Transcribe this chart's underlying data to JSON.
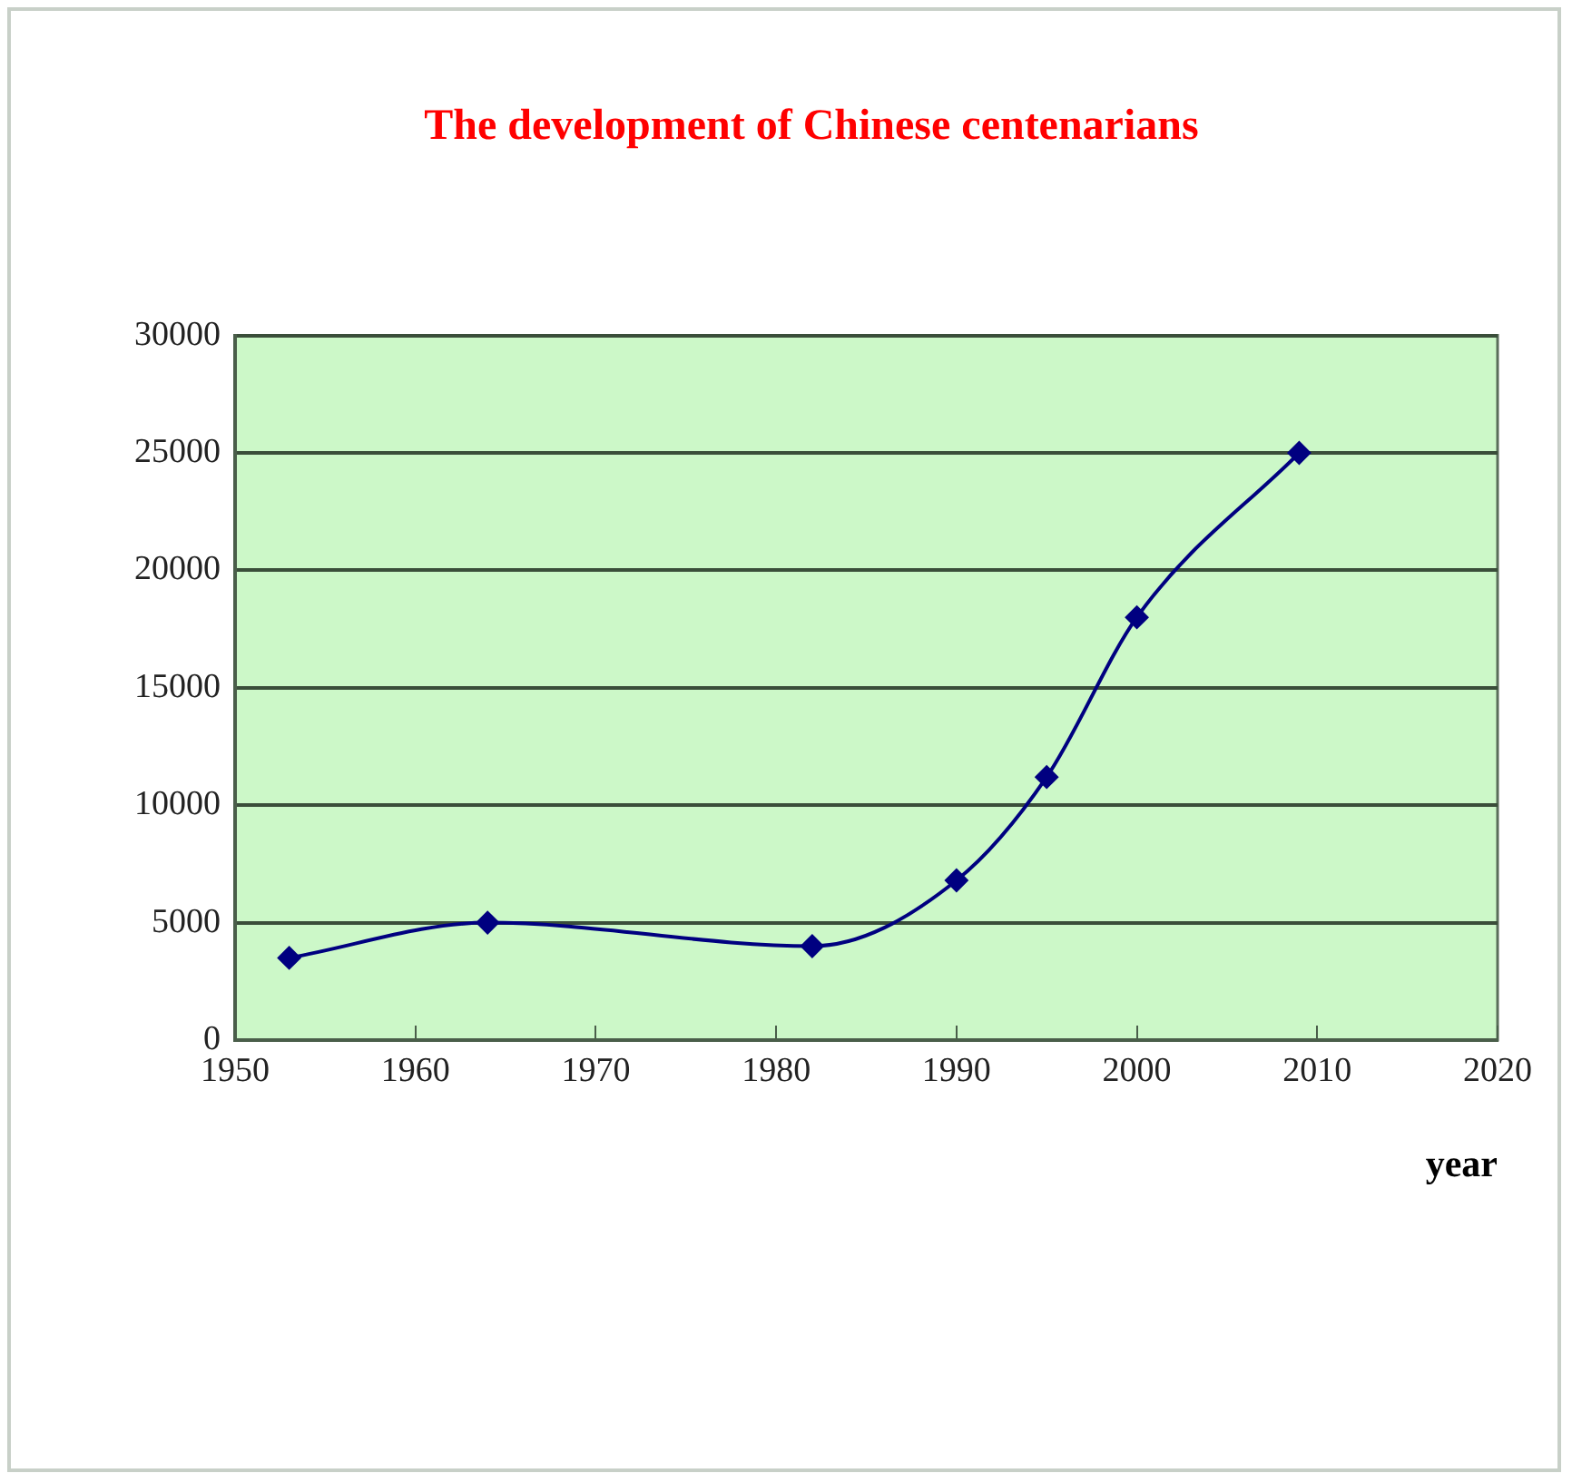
{
  "chart_data": {
    "type": "line",
    "title": "The development of Chinese centenarians",
    "xlabel": "year",
    "x": [
      1953,
      1964,
      1982,
      1990,
      1995,
      2000,
      2009
    ],
    "series": [
      {
        "color": "#000080",
        "values": [
          3500,
          5000,
          4000,
          6800,
          11200,
          18000,
          25000
        ]
      }
    ],
    "xlim": [
      1950,
      2020
    ],
    "xticks": [
      1950,
      1960,
      1970,
      1980,
      1990,
      2000,
      2010,
      2020
    ],
    "ylim": [
      0,
      30000
    ],
    "yticks": [
      0,
      5000,
      10000,
      15000,
      20000,
      25000,
      30000
    ],
    "grid": "y",
    "legend": false,
    "marker": "diamond",
    "line_style": "solid"
  }
}
